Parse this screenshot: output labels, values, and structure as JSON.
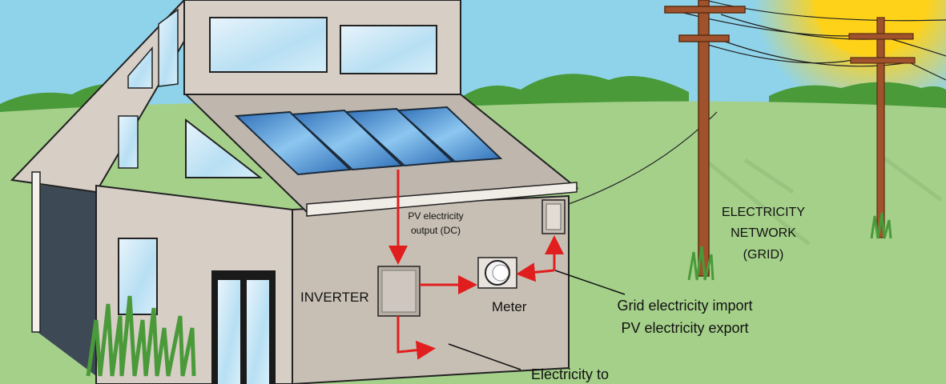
{
  "labels": {
    "pv_output_line1": "PV electricity",
    "pv_output_line2": "output (DC)",
    "inverter": "INVERTER",
    "meter": "Meter",
    "grid_line1": "ELECTRICITY",
    "grid_line2": "NETWORK",
    "grid_line3": "(GRID)",
    "import_export_line1": "Grid electricity import",
    "import_export_line2": "PV electricity export",
    "house_supply": "Electricity to"
  },
  "colors": {
    "sky": "#8fd3ea",
    "grass": "#a5d08a",
    "trees": "#4a9a3a",
    "house_wall": "#d7cfc6",
    "house_side": "#c8bfb4",
    "roof": "#bfb6ad",
    "panel": "#3a8ad0",
    "arrow": "#e01e1e",
    "pole": "#a0522d",
    "sun": "#ffd21a"
  }
}
